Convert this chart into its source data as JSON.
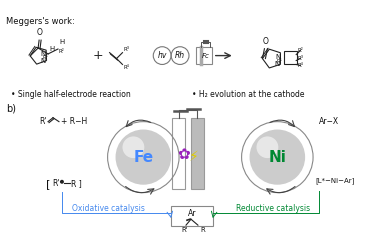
{
  "bg_color": "#ffffff",
  "meggers_label": "Meggers's work:",
  "bullet1": "• Single half-electrode reaction",
  "bullet2": "• H₂ evolution at the cathode",
  "b_label": "b)",
  "fe_label": "Fe",
  "ni_label": "Ni",
  "fe_color": "#4488ff",
  "ni_color": "#008833",
  "oxidative_label": "Oxidative catalysis",
  "reductive_label": "Reductive catalysis",
  "oxidative_color": "#4488ee",
  "reductive_color": "#008833",
  "rh_label": "Rh",
  "hv_label": "hv",
  "fc_label": "Fc",
  "gray_sphere": "#cccccc",
  "sphere_edge": "#888888"
}
